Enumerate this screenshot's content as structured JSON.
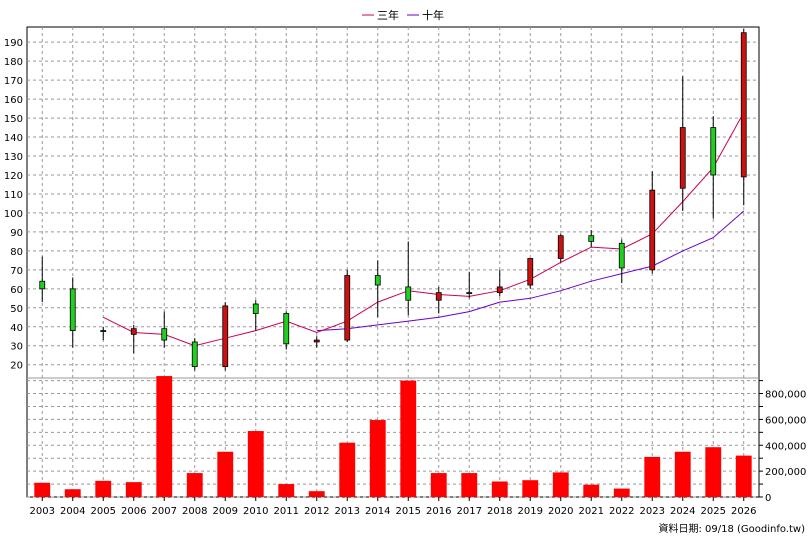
{
  "chart_data": {
    "type": "candlestick+bar",
    "years": [
      "2003",
      "2004",
      "2005",
      "2006",
      "2007",
      "2008",
      "2009",
      "2010",
      "2011",
      "2012",
      "2013",
      "2014",
      "2015",
      "2016",
      "2017",
      "2018",
      "2019",
      "2020",
      "2021",
      "2022",
      "2023",
      "2024",
      "2025",
      "2026"
    ],
    "price_axis": {
      "ticks": [
        20,
        30,
        40,
        50,
        60,
        70,
        80,
        90,
        100,
        110,
        120,
        130,
        140,
        150,
        160,
        170,
        180,
        190
      ],
      "ylim": [
        13,
        198
      ]
    },
    "volume_axis": {
      "tick_labels": [
        "0",
        "200,000",
        "400,000",
        "600,000",
        "800,000"
      ],
      "ticks": [
        0,
        200000,
        400000,
        600000,
        800000
      ],
      "ylim": [
        0,
        920000
      ]
    },
    "candles": [
      {
        "year": "2003",
        "open": 60,
        "high": 77,
        "low": 53,
        "close": 64
      },
      {
        "year": "2004",
        "open": 38,
        "high": 66,
        "low": 29,
        "close": 60
      },
      {
        "year": "2005",
        "open": 38,
        "high": 40,
        "low": 33,
        "close": 38
      },
      {
        "year": "2006",
        "open": 39,
        "high": 41,
        "low": 26,
        "close": 36
      },
      {
        "year": "2007",
        "open": 33,
        "high": 48,
        "low": 29,
        "close": 39
      },
      {
        "year": "2008",
        "open": 19,
        "high": 34,
        "low": 17,
        "close": 32
      },
      {
        "year": "2009",
        "open": 51,
        "high": 53,
        "low": 17,
        "close": 19
      },
      {
        "year": "2010",
        "open": 47,
        "high": 54,
        "low": 38,
        "close": 52
      },
      {
        "year": "2011",
        "open": 31,
        "high": 48,
        "low": 28,
        "close": 47
      },
      {
        "year": "2012",
        "open": 33,
        "high": 35,
        "low": 29,
        "close": 32
      },
      {
        "year": "2013",
        "open": 67,
        "high": 70,
        "low": 32,
        "close": 33
      },
      {
        "year": "2014",
        "open": 62,
        "high": 75,
        "low": 45,
        "close": 67
      },
      {
        "year": "2015",
        "open": 54,
        "high": 85,
        "low": 46,
        "close": 61
      },
      {
        "year": "2016",
        "open": 58,
        "high": 61,
        "low": 47,
        "close": 54
      },
      {
        "year": "2017",
        "open": 58,
        "high": 69,
        "low": 55,
        "close": 58
      },
      {
        "year": "2018",
        "open": 61,
        "high": 70,
        "low": 56,
        "close": 58
      },
      {
        "year": "2019",
        "open": 76,
        "high": 76,
        "low": 60,
        "close": 62
      },
      {
        "year": "2020",
        "open": 88,
        "high": 89,
        "low": 74,
        "close": 76
      },
      {
        "year": "2021",
        "open": 85,
        "high": 91,
        "low": 82,
        "close": 88
      },
      {
        "year": "2022",
        "open": 71,
        "high": 86,
        "low": 63,
        "close": 84
      },
      {
        "year": "2023",
        "open": 112,
        "high": 122,
        "low": 68,
        "close": 70
      },
      {
        "year": "2024",
        "open": 145,
        "high": 172,
        "low": 101,
        "close": 113
      },
      {
        "year": "2025",
        "open": 120,
        "high": 151,
        "low": 97,
        "close": 145
      },
      {
        "year": "2026",
        "open": 195,
        "high": 197,
        "low": 104,
        "close": 119
      }
    ],
    "ma3_name": "三年",
    "ma3": [
      null,
      null,
      45,
      37,
      36,
      30,
      34,
      38,
      43,
      37,
      43,
      53,
      59,
      57,
      56,
      59,
      65,
      74,
      82,
      81,
      89,
      106,
      124,
      153
    ],
    "ma10_name": "十年",
    "ma10": [
      null,
      null,
      null,
      null,
      null,
      null,
      null,
      null,
      null,
      38,
      39,
      41,
      43,
      45,
      48,
      53,
      55,
      59,
      64,
      68,
      72,
      80,
      87,
      101
    ],
    "volumes": [
      110000,
      60000,
      125000,
      115000,
      935000,
      185000,
      350000,
      510000,
      100000,
      45000,
      420000,
      595000,
      900000,
      185000,
      185000,
      120000,
      130000,
      190000,
      95000,
      65000,
      310000,
      350000,
      385000,
      320000
    ],
    "legend_position": "top-center",
    "grid": true,
    "colors": {
      "up": "#20d020",
      "down": "#cc1111",
      "volume": "#ff0000",
      "ma3": "#cc0055",
      "ma10": "#6a00cc"
    },
    "source_text": "資料日期: 09/18  (Goodinfo.tw)"
  }
}
